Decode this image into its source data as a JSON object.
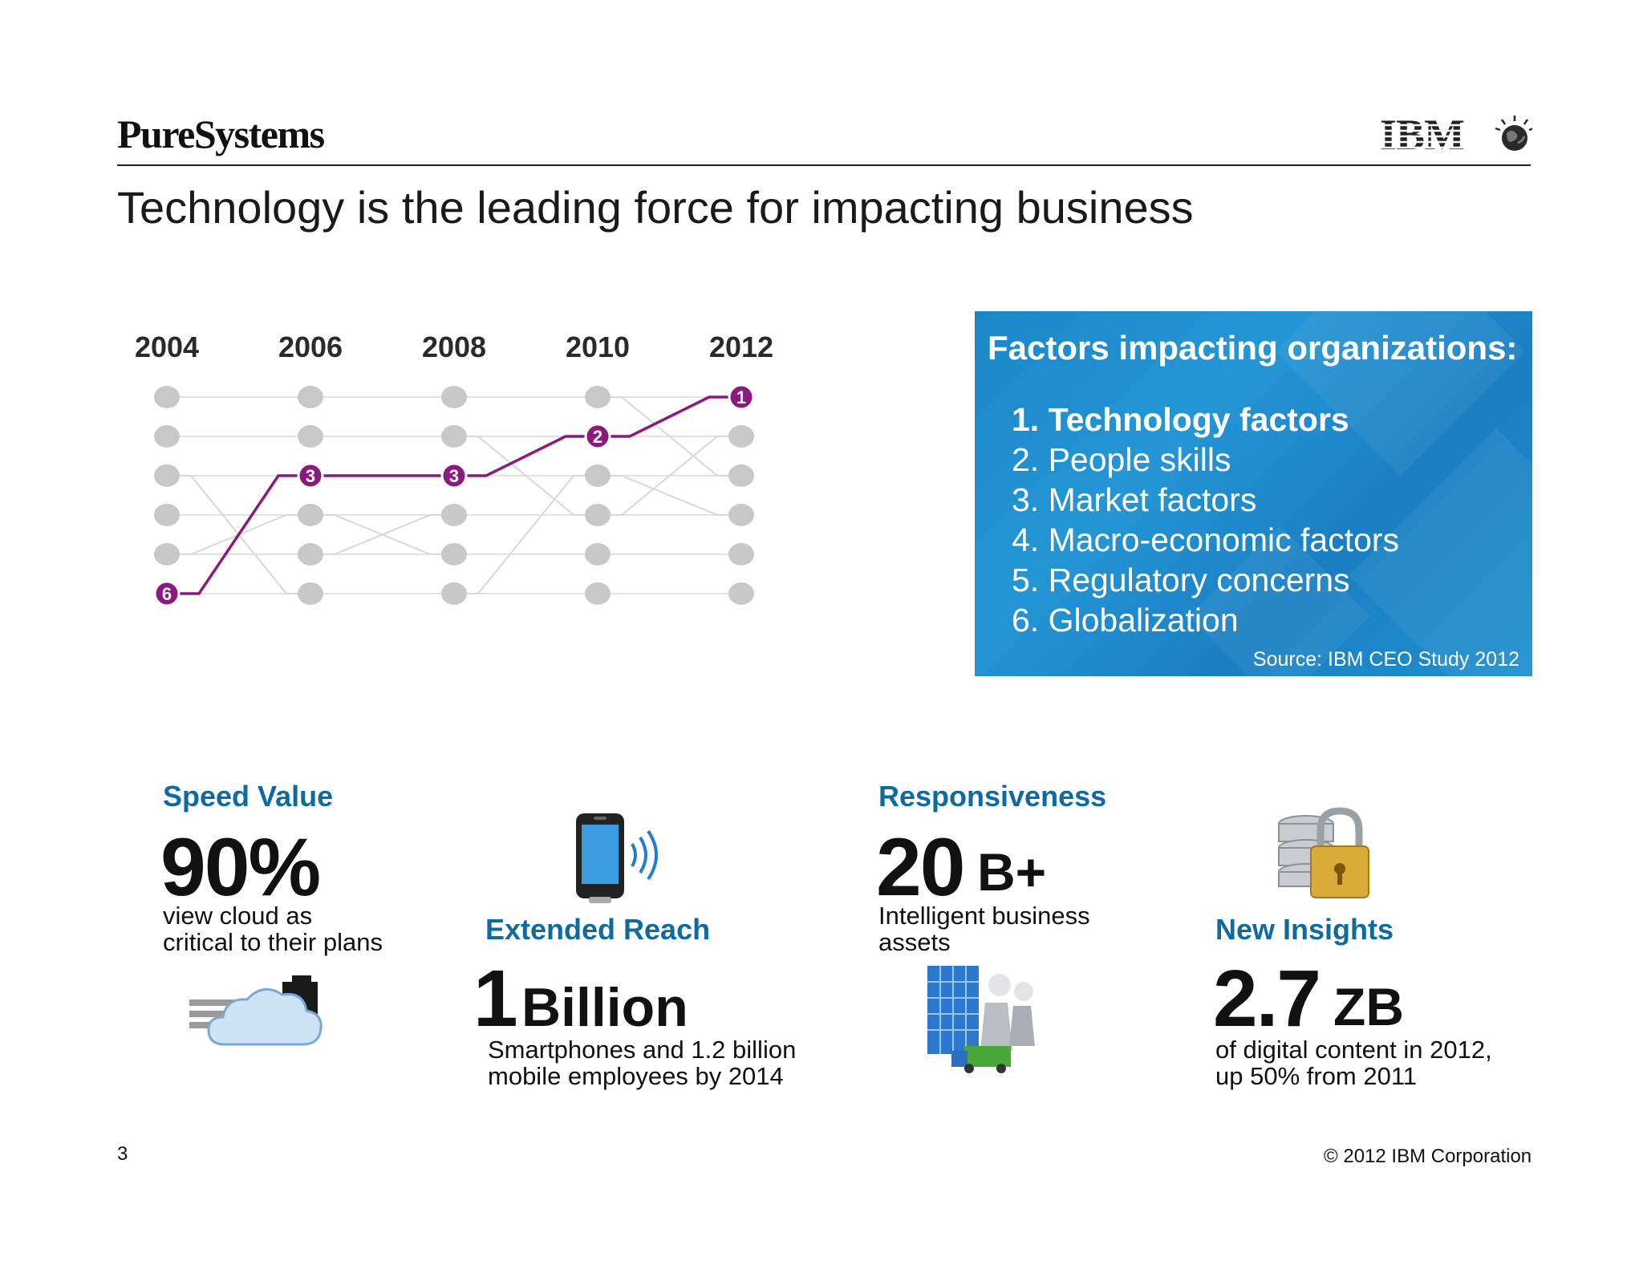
{
  "header": {
    "brand": "PureSystems",
    "logo_text": "IBM",
    "title": "Technology is the leading force for impacting business"
  },
  "chart_data": {
    "type": "line",
    "description_type": "rank bump chart",
    "x": [
      "2004",
      "2006",
      "2008",
      "2010",
      "2012"
    ],
    "y_axis": "rank",
    "ylim": [
      1,
      6
    ],
    "ranks_per_year": 6,
    "series": [
      {
        "name": "Technology factors",
        "values": [
          6,
          3,
          3,
          2,
          1
        ]
      }
    ],
    "highlight_color": "#8a1a7e",
    "node_color": "#c8c8c8",
    "connector_color": "#d8d8d8"
  },
  "factors": {
    "title": "Factors impacting organizations:",
    "items": [
      "1. Technology factors",
      "2. People skills",
      "3. Market factors",
      "4. Macro-economic factors",
      "5. Regulatory concerns",
      "6. Globalization"
    ],
    "source": "Source: IBM CEO Study 2012",
    "panel_color": "#1a86c8"
  },
  "stats": {
    "speed": {
      "heading": "Speed Value",
      "value": "90%",
      "desc_line1": "view cloud as",
      "desc_line2": "critical to their plans",
      "icon": "cloud-server-icon"
    },
    "reach": {
      "heading": "Extended Reach",
      "value": "1",
      "unit": "Billion",
      "desc_line1": "Smartphones and 1.2 billion",
      "desc_line2": "mobile employees by 2014",
      "icon": "smartphone-icon"
    },
    "responsiveness": {
      "heading": "Responsiveness",
      "value": "20",
      "unit": "B+",
      "desc_line1": "Intelligent business",
      "desc_line2": "assets",
      "icon": "buildings-icon"
    },
    "insights": {
      "heading": "New Insights",
      "value": "2.7",
      "unit": "ZB",
      "desc_line1": "of digital content in 2012,",
      "desc_line2": "up 50% from 2011",
      "icon": "database-lock-icon"
    }
  },
  "footer": {
    "page_number": "3",
    "copyright": "© 2012 IBM Corporation"
  },
  "colors": {
    "heading_blue": "#0f6aa1",
    "panel_blue": "#1a86c8",
    "highlight_purple": "#8a1a7e"
  }
}
